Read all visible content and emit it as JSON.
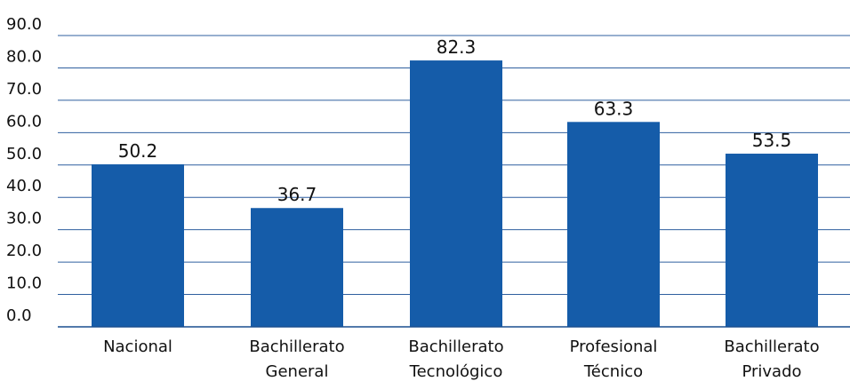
{
  "chart_data": {
    "type": "bar",
    "title": "",
    "xlabel": "",
    "ylabel": "",
    "categories": [
      [
        "Nacional"
      ],
      [
        "Bachillerato",
        "General"
      ],
      [
        "Bachillerato",
        "Tecnológico"
      ],
      [
        "Profesional",
        "Técnico"
      ],
      [
        "Bachillerato",
        "Privado"
      ]
    ],
    "values": [
      50.2,
      36.7,
      82.3,
      63.3,
      53.5
    ],
    "value_labels": [
      "50.2",
      "36.7",
      "82.3",
      "63.3",
      "53.5"
    ],
    "ylim": [
      0,
      90
    ],
    "yticks": [
      "0.0",
      "10.0",
      "20.0",
      "30.0",
      "40.0",
      "50.0",
      "60.0",
      "70.0",
      "80.0",
      "90.0"
    ],
    "grid": true,
    "legend": "none",
    "colors": {
      "bar": "#155ca9",
      "grid": "#2f5f9f",
      "axis": "#1a4f8f",
      "text": "#111111"
    }
  }
}
